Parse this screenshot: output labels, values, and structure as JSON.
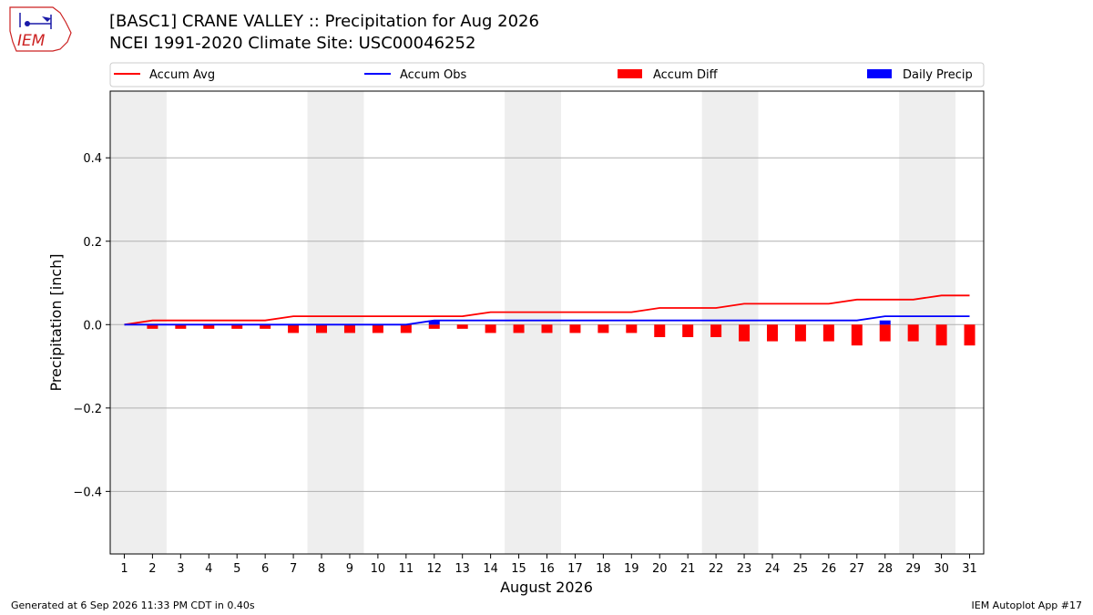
{
  "header": {
    "title_line1": "[BASC1] CRANE VALLEY :: Precipitation for Aug 2026",
    "title_line2": "NCEI 1991-2020 Climate Site: USC00046252",
    "logo_text": "IEM"
  },
  "footer": {
    "left": "Generated at 6 Sep 2026 11:33 PM CDT in 0.40s",
    "right": "IEM Autoplot App #17"
  },
  "colors": {
    "avg": "#ff0000",
    "obs": "#0000ff",
    "diff": "#ff0000",
    "daily": "#0000ff",
    "weekend_band": "#eeeeee",
    "grid": "#b0b0b0"
  },
  "chart_data": {
    "type": "line",
    "title": "[BASC1] CRANE VALLEY :: Precipitation for Aug 2026",
    "subtitle": "NCEI 1991-2020 Climate Site: USC00046252",
    "xlabel": "August 2026",
    "ylabel": "Precipitation [inch]",
    "ylim": [
      -0.55,
      0.56
    ],
    "yticks": [
      0.4,
      0.2,
      0.0,
      -0.2,
      -0.4
    ],
    "ytick_labels": [
      "0.4",
      "0.2",
      "0.0",
      "−0.2",
      "−0.4"
    ],
    "xlim": [
      0.5,
      31.5
    ],
    "x": [
      1,
      2,
      3,
      4,
      5,
      6,
      7,
      8,
      9,
      10,
      11,
      12,
      13,
      14,
      15,
      16,
      17,
      18,
      19,
      20,
      21,
      22,
      23,
      24,
      25,
      26,
      27,
      28,
      29,
      30,
      31
    ],
    "xtick_labels": [
      "1",
      "2",
      "3",
      "4",
      "5",
      "6",
      "7",
      "8",
      "9",
      "10",
      "11",
      "12",
      "13",
      "14",
      "15",
      "16",
      "17",
      "18",
      "19",
      "20",
      "21",
      "22",
      "23",
      "24",
      "25",
      "26",
      "27",
      "28",
      "29",
      "30",
      "31"
    ],
    "grid": true,
    "legend_position": "top",
    "weekend_bands": [
      [
        0.5,
        2.5
      ],
      [
        7.5,
        9.5
      ],
      [
        14.5,
        16.5
      ],
      [
        21.5,
        23.5
      ],
      [
        28.5,
        30.5
      ]
    ],
    "series": [
      {
        "name": "Accum Avg",
        "type": "line",
        "color": "#ff0000",
        "values": [
          0,
          0.01,
          0.01,
          0.01,
          0.01,
          0.01,
          0.02,
          0.02,
          0.02,
          0.02,
          0.02,
          0.02,
          0.02,
          0.03,
          0.03,
          0.03,
          0.03,
          0.03,
          0.03,
          0.04,
          0.04,
          0.04,
          0.05,
          0.05,
          0.05,
          0.05,
          0.06,
          0.06,
          0.06,
          0.07,
          0.07
        ]
      },
      {
        "name": "Accum Obs",
        "type": "line",
        "color": "#0000ff",
        "values": [
          0,
          0,
          0,
          0,
          0,
          0,
          0,
          0,
          0,
          0,
          0,
          0.01,
          0.01,
          0.01,
          0.01,
          0.01,
          0.01,
          0.01,
          0.01,
          0.01,
          0.01,
          0.01,
          0.01,
          0.01,
          0.01,
          0.01,
          0.01,
          0.02,
          0.02,
          0.02,
          0.02
        ]
      },
      {
        "name": "Accum Diff",
        "type": "bar",
        "color": "#ff0000",
        "values": [
          0,
          -0.01,
          -0.01,
          -0.01,
          -0.01,
          -0.01,
          -0.02,
          -0.02,
          -0.02,
          -0.02,
          -0.02,
          -0.01,
          -0.01,
          -0.02,
          -0.02,
          -0.02,
          -0.02,
          -0.02,
          -0.02,
          -0.03,
          -0.03,
          -0.03,
          -0.04,
          -0.04,
          -0.04,
          -0.04,
          -0.05,
          -0.04,
          -0.04,
          -0.05,
          -0.05
        ]
      },
      {
        "name": "Daily Precip",
        "type": "bar",
        "color": "#0000ff",
        "values": [
          0,
          0,
          0,
          0,
          0,
          0,
          0,
          0,
          0,
          0,
          0,
          0.01,
          0,
          0,
          0,
          0,
          0,
          0,
          0,
          0,
          0,
          0,
          0,
          0,
          0,
          0,
          0,
          0.01,
          0,
          0,
          0
        ]
      }
    ]
  }
}
